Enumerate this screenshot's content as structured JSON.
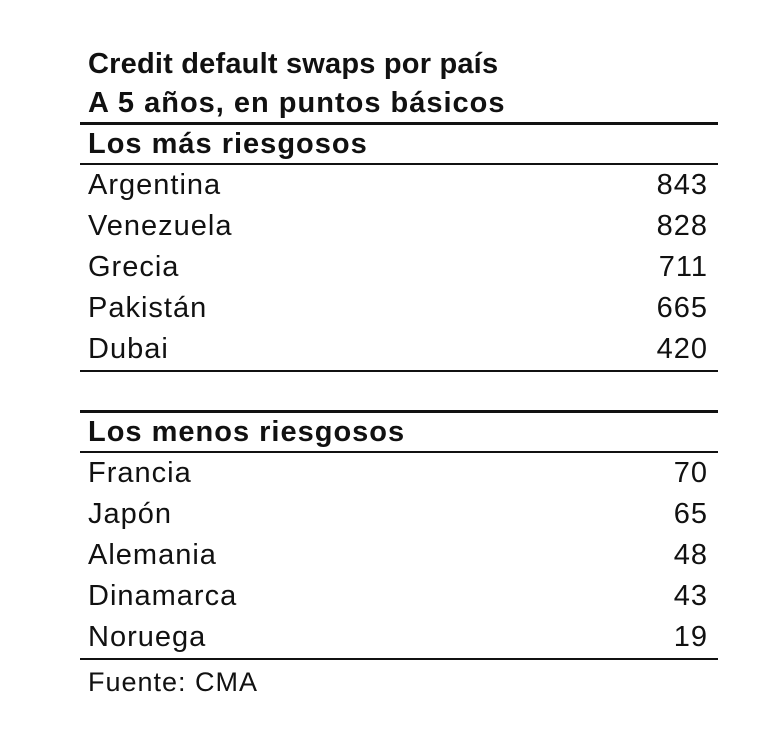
{
  "chart_data": {
    "type": "table",
    "title": "Credit default swaps por país",
    "subtitle": "A 5 años, en puntos básicos",
    "sections": [
      {
        "heading": "Los más riesgosos",
        "rows": [
          {
            "country": "Argentina",
            "value": "843"
          },
          {
            "country": "Venezuela",
            "value": "828"
          },
          {
            "country": "Grecia",
            "value": "711"
          },
          {
            "country": "Pakistán",
            "value": "665"
          },
          {
            "country": "Dubai",
            "value": "420"
          }
        ]
      },
      {
        "heading": "Los menos riesgosos",
        "rows": [
          {
            "country": "Francia",
            "value": "70"
          },
          {
            "country": "Japón",
            "value": "65"
          },
          {
            "country": "Alemania",
            "value": "48"
          },
          {
            "country": "Dinamarca",
            "value": "43"
          },
          {
            "country": "Noruega",
            "value": "19"
          }
        ]
      }
    ],
    "source": "Fuente: CMA"
  }
}
